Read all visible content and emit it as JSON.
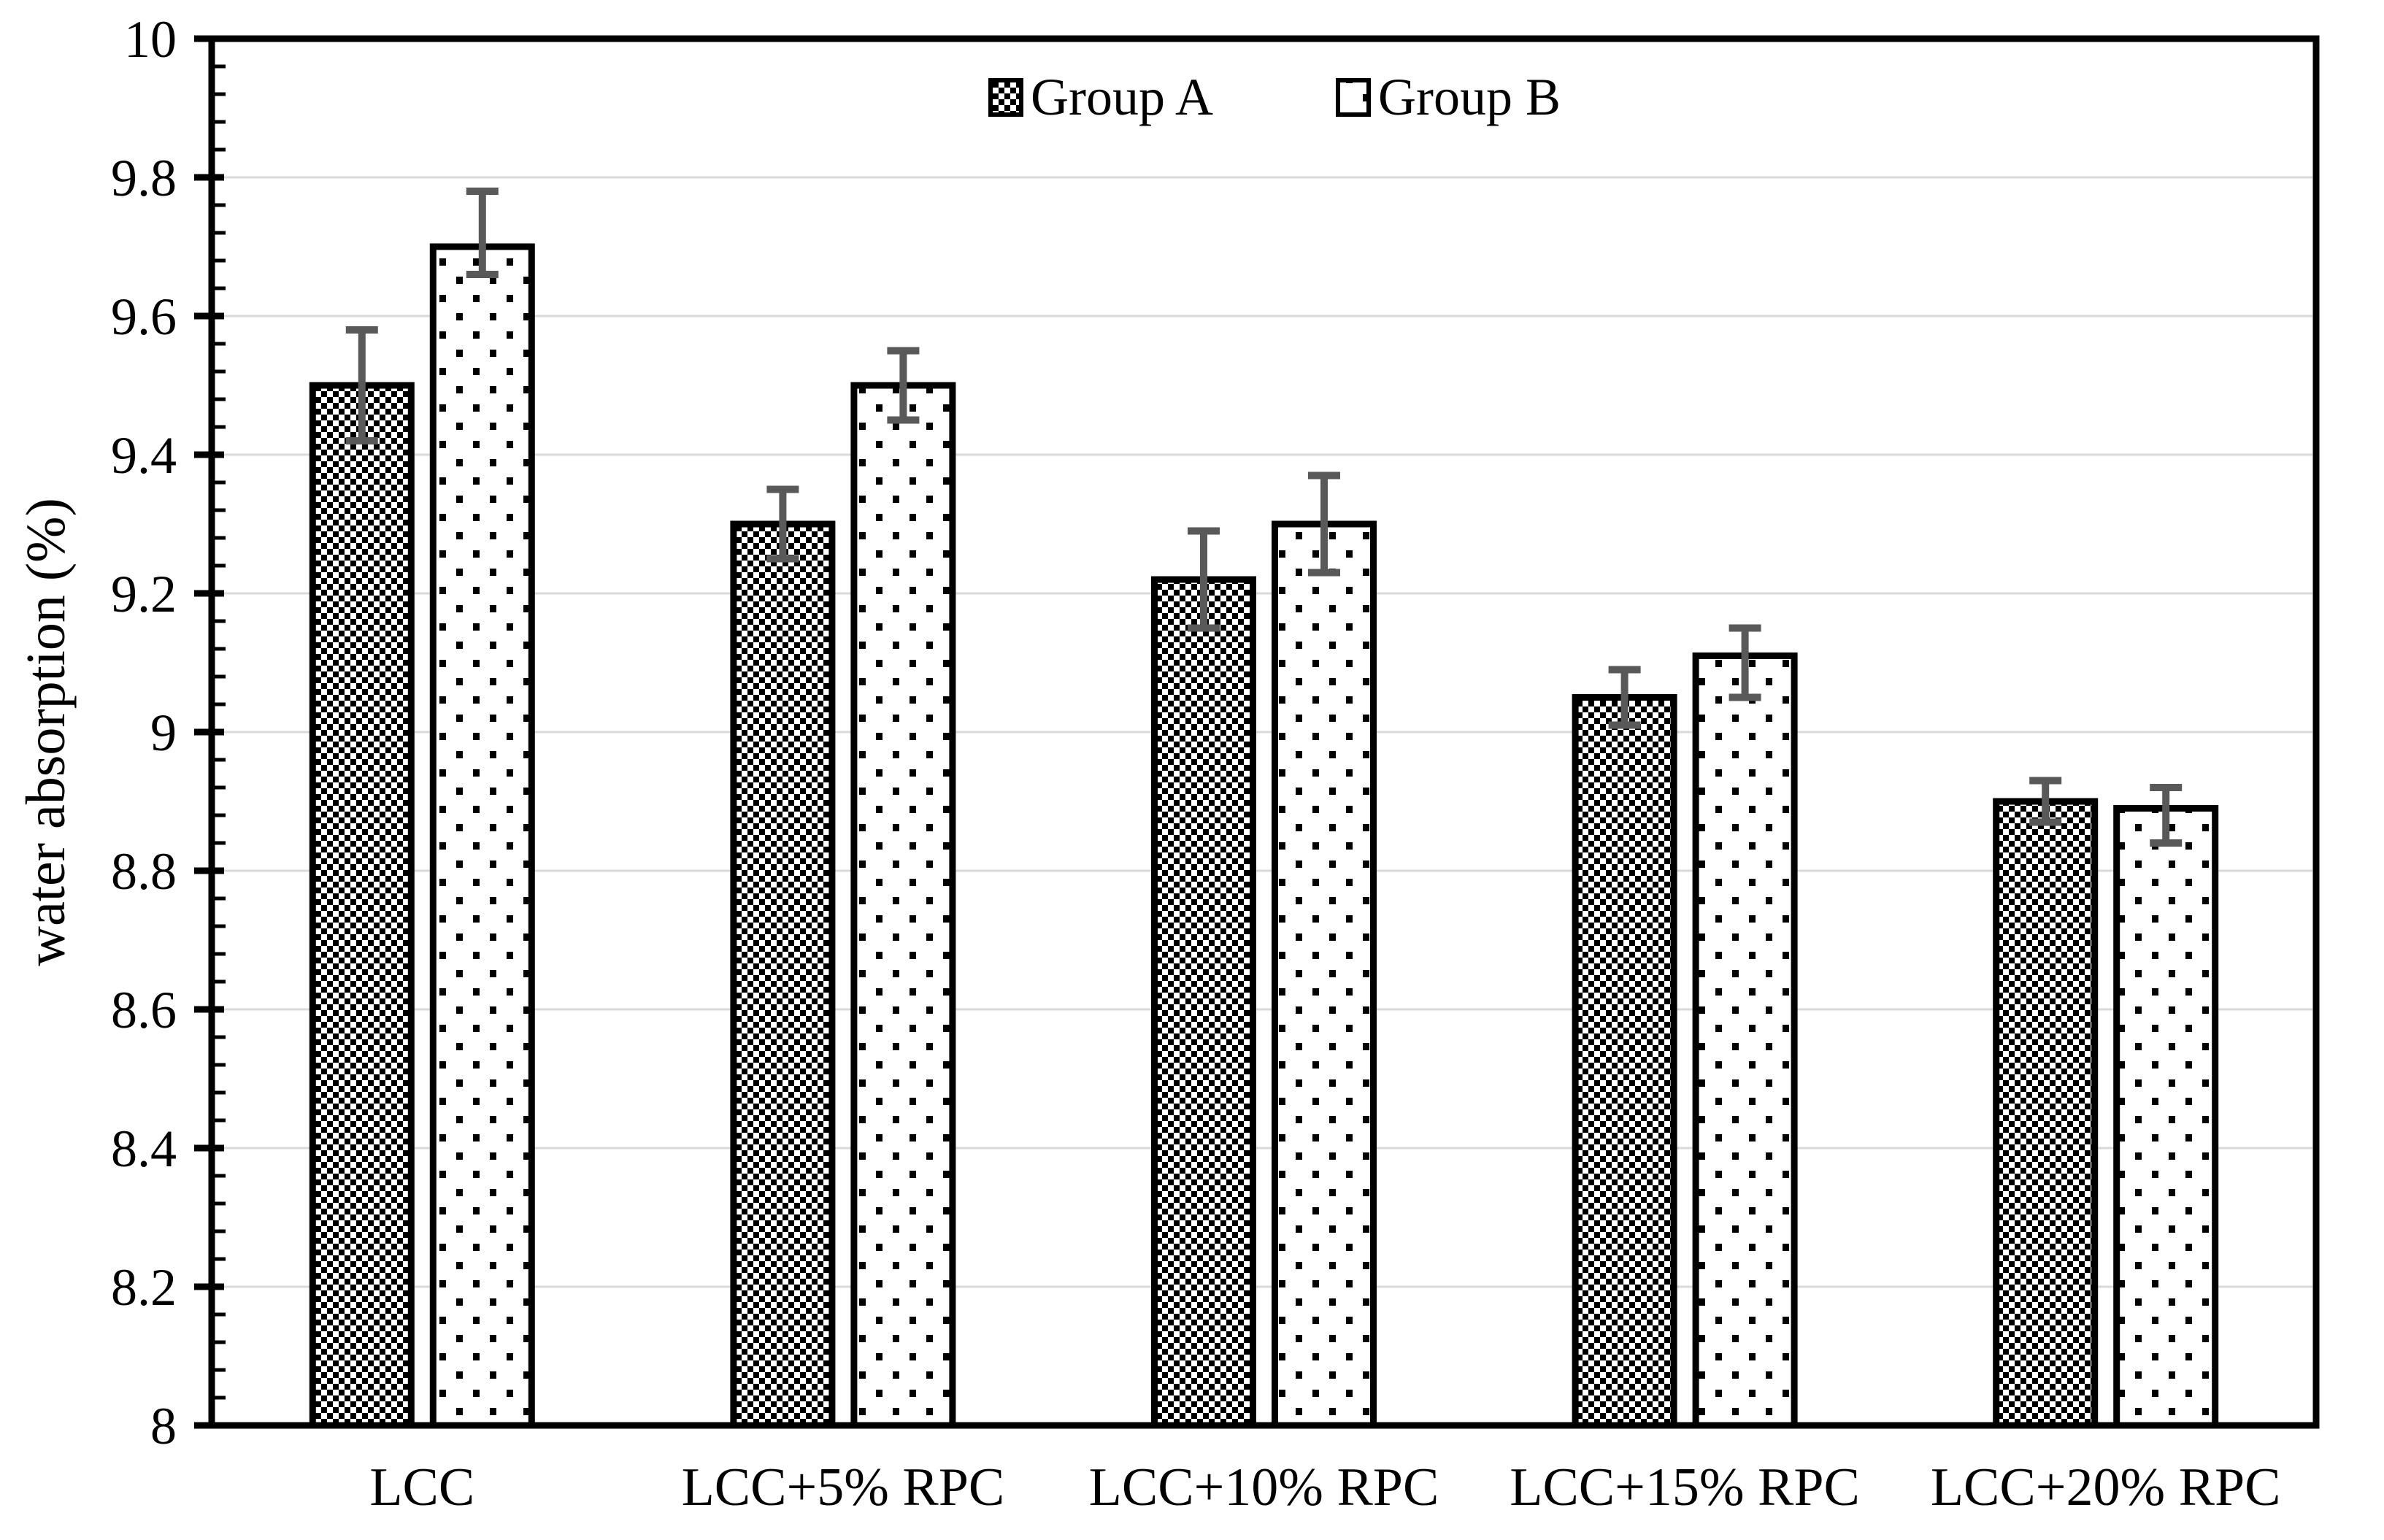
{
  "chart_data": {
    "type": "bar",
    "title": "",
    "xlabel": "",
    "ylabel": "water absorption (%)",
    "ylim": [
      8,
      10
    ],
    "ytick_step": 0.2,
    "minor_tick_step": 0.04,
    "yticks": [
      "10",
      "9.8",
      "9.6",
      "9.4",
      "9.2",
      "9",
      "8.8",
      "8.6",
      "8.4",
      "8.2",
      "8"
    ],
    "ytick_values": [
      10,
      9.8,
      9.6,
      9.4,
      9.2,
      9,
      8.8,
      8.6,
      8.4,
      8.2,
      8
    ],
    "grid": "horizontal-major-only",
    "legend_position": "top-center-inside",
    "categories": [
      "LCC",
      "LCC+5% RPC",
      "LCC+10% RPC",
      "LCC+15% RPC",
      "LCC+20% RPC"
    ],
    "series": [
      {
        "name": "Group A",
        "pattern": "checkerboard",
        "values": [
          9.5,
          9.3,
          9.22,
          9.05,
          8.9
        ],
        "err_plus": [
          0.08,
          0.05,
          0.07,
          0.04,
          0.03
        ],
        "err_minus": [
          0.08,
          0.05,
          0.07,
          0.04,
          0.03
        ]
      },
      {
        "name": "Group B",
        "pattern": "square-dots",
        "values": [
          9.7,
          9.5,
          9.3,
          9.11,
          8.89
        ],
        "err_plus": [
          0.08,
          0.05,
          0.07,
          0.04,
          0.03
        ],
        "err_minus": [
          0.04,
          0.05,
          0.07,
          0.06,
          0.05
        ]
      }
    ],
    "colors": {
      "bar_fill_background": "#ffffff",
      "bar_stroke": "#000000",
      "pattern_ink": "#000000",
      "error_bar": "#595959",
      "gridline": "#d9d9d9",
      "axis": "#000000",
      "text": "#000000"
    }
  },
  "legend": {
    "items": [
      {
        "label": "Group A",
        "swatch": "checkerboard"
      },
      {
        "label": "Group B",
        "swatch": "square-dots"
      }
    ]
  }
}
